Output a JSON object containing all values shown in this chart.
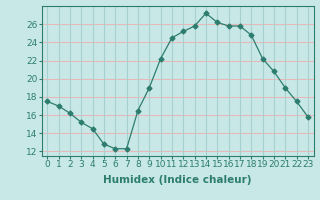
{
  "xlabel": "Humidex (Indice chaleur)",
  "x": [
    0,
    1,
    2,
    3,
    4,
    5,
    6,
    7,
    8,
    9,
    10,
    11,
    12,
    13,
    14,
    15,
    16,
    17,
    18,
    19,
    20,
    21,
    22,
    23
  ],
  "y": [
    17.5,
    17.0,
    16.2,
    15.2,
    14.5,
    12.8,
    12.3,
    12.3,
    16.5,
    19.0,
    22.2,
    24.5,
    25.2,
    25.8,
    27.2,
    26.2,
    25.8,
    25.8,
    24.8,
    22.2,
    20.8,
    19.0,
    17.5,
    15.8
  ],
  "line_color": "#2d7d6e",
  "marker": "D",
  "marker_size": 2.5,
  "bg_color": "#c8e8e8",
  "grid_horiz_color": "#e8b8b8",
  "grid_vert_color": "#a8d0d0",
  "ylim": [
    11.5,
    28
  ],
  "yticks": [
    12,
    14,
    16,
    18,
    20,
    22,
    24,
    26
  ],
  "xlim": [
    -0.5,
    23.5
  ],
  "xticks": [
    0,
    1,
    2,
    3,
    4,
    5,
    6,
    7,
    8,
    9,
    10,
    11,
    12,
    13,
    14,
    15,
    16,
    17,
    18,
    19,
    20,
    21,
    22,
    23
  ],
  "tick_fontsize": 6.5,
  "xlabel_fontsize": 7.5,
  "spine_color": "#2d7d6e"
}
